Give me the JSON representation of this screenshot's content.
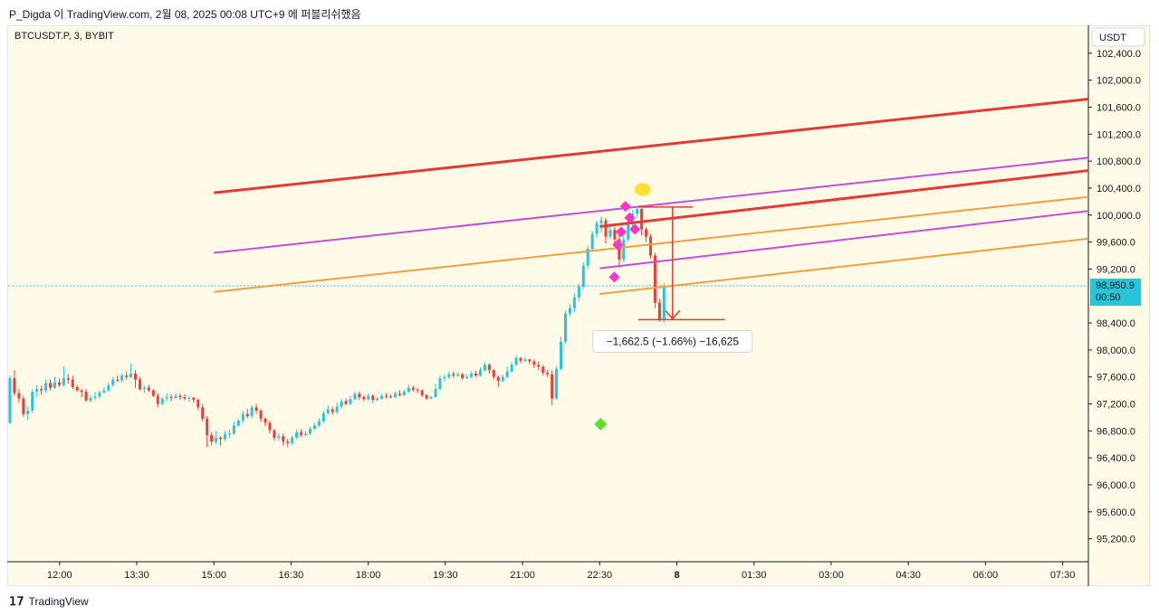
{
  "header": {
    "text": "P_Digda 이 TradingView.com, 2월 08, 2025 00:08 UTC+9 에 퍼블리쉬했음"
  },
  "footer": {
    "brand": "TradingView",
    "logo_icon": "tradingview-logo-icon"
  },
  "chart_data": {
    "type": "candlestick",
    "symbol_label": "BTCUSDT.P, 3, BYBIT",
    "currency_label": "USDT",
    "y_ticks": [
      "102,400.0",
      "102,000.0",
      "101,600.0",
      "101,200.0",
      "100,800.0",
      "100,400.0",
      "100,000.0",
      "99,600.0",
      "99,200.0",
      "98,400.0",
      "98,000.0",
      "97,600.0",
      "97,200.0",
      "96,800.0",
      "96,400.0",
      "96,000.0",
      "95,600.0",
      "95,200.0"
    ],
    "x_ticks": [
      "12:00",
      "13:30",
      "15:00",
      "16:30",
      "18:00",
      "19:30",
      "21:00",
      "22:30",
      "8",
      "01:30",
      "03:00",
      "04:30",
      "06:00",
      "07:30"
    ],
    "x_range": [
      "11:00",
      "08:00"
    ],
    "ylim": [
      94860,
      102800
    ],
    "current_price": {
      "value": "98,950.9",
      "countdown": "00:50",
      "color": "#26c6da"
    },
    "colors": {
      "up": "#26c6da",
      "down": "#ef3b3b",
      "background": "#fffbe6"
    },
    "trendlines": [
      {
        "color": "#e53935",
        "start": [
          "15:00",
          100330
        ],
        "end": [
          "08:00",
          101720
        ]
      },
      {
        "color": "#e53935",
        "start": [
          "22:30",
          99830
        ],
        "end": [
          "08:00",
          100660
        ]
      },
      {
        "color": "#c04ee0",
        "start": [
          "15:00",
          99440
        ],
        "end": [
          "08:00",
          100850
        ]
      },
      {
        "color": "#c04ee0",
        "start": [
          "22:30",
          99210
        ],
        "end": [
          "08:00",
          100060
        ]
      },
      {
        "color": "#f0a040",
        "start": [
          "15:00",
          98860
        ],
        "end": [
          "08:00",
          100270
        ]
      },
      {
        "color": "#f0a040",
        "start": [
          "22:30",
          98830
        ],
        "end": [
          "08:00",
          99650
        ]
      }
    ],
    "markers": [
      {
        "shape": "diamond",
        "color": "#5ae02a",
        "time": "22:31",
        "price": 96900
      },
      {
        "shape": "diamond",
        "color": "#ff33cc",
        "time": "23:00",
        "price": 100130
      },
      {
        "shape": "diamond",
        "color": "#ff33cc",
        "time": "23:05",
        "price": 99960
      },
      {
        "shape": "diamond",
        "color": "#ff33cc",
        "time": "22:55",
        "price": 99750
      },
      {
        "shape": "diamond",
        "color": "#ff33cc",
        "time": "22:51",
        "price": 99560
      },
      {
        "shape": "diamond",
        "color": "#ff33cc",
        "time": "22:47",
        "price": 99080
      },
      {
        "shape": "diamond",
        "color": "#ff33cc",
        "time": "23:11",
        "price": 99790
      },
      {
        "shape": "ellipse",
        "color": "#ffe033",
        "time": "23:20",
        "price": 100380
      }
    ],
    "measurement": {
      "label": "−1,662.5 (−1.66%) −16,625",
      "from_price": 100120,
      "to_price": 98450,
      "time_start": "23:15",
      "time_end": "00:35",
      "color": "#e53935"
    },
    "candles": [
      [
        96920,
        97580,
        96900,
        97620
      ],
      [
        97580,
        97360,
        97320,
        97700
      ],
      [
        97360,
        97280,
        97220,
        97420
      ],
      [
        97280,
        97050,
        97010,
        97320
      ],
      [
        97050,
        97100,
        96960,
        97160
      ],
      [
        97100,
        97380,
        97060,
        97420
      ],
      [
        97380,
        97420,
        97300,
        97480
      ],
      [
        97420,
        97400,
        97340,
        97470
      ],
      [
        97400,
        97510,
        97360,
        97560
      ],
      [
        97510,
        97440,
        97400,
        97560
      ],
      [
        97440,
        97520,
        97420,
        97600
      ],
      [
        97520,
        97480,
        97450,
        97580
      ],
      [
        97480,
        97580,
        97460,
        97760
      ],
      [
        97580,
        97560,
        97500,
        97640
      ],
      [
        97560,
        97450,
        97420,
        97620
      ],
      [
        97450,
        97400,
        97380,
        97480
      ],
      [
        97400,
        97380,
        97300,
        97420
      ],
      [
        97380,
        97250,
        97230,
        97420
      ],
      [
        97250,
        97290,
        97220,
        97330
      ],
      [
        97290,
        97310,
        97260,
        97380
      ],
      [
        97310,
        97370,
        97280,
        97400
      ],
      [
        97370,
        97400,
        97350,
        97450
      ],
      [
        97400,
        97480,
        97380,
        97520
      ],
      [
        97480,
        97560,
        97450,
        97600
      ],
      [
        97560,
        97550,
        97520,
        97620
      ],
      [
        97550,
        97620,
        97520,
        97650
      ],
      [
        97620,
        97600,
        97560,
        97680
      ],
      [
        97600,
        97650,
        97580,
        97800
      ],
      [
        97650,
        97560,
        97440,
        97700
      ],
      [
        97560,
        97420,
        97400,
        97600
      ],
      [
        97420,
        97440,
        97360,
        97470
      ],
      [
        97440,
        97400,
        97380,
        97480
      ],
      [
        97400,
        97320,
        97300,
        97420
      ],
      [
        97320,
        97200,
        97150,
        97360
      ],
      [
        97200,
        97280,
        97180,
        97300
      ],
      [
        97280,
        97300,
        97240,
        97360
      ],
      [
        97300,
        97290,
        97240,
        97340
      ],
      [
        97290,
        97320,
        97280,
        97360
      ],
      [
        97320,
        97300,
        97260,
        97350
      ],
      [
        97300,
        97280,
        97250,
        97340
      ],
      [
        97280,
        97290,
        97230,
        97320
      ],
      [
        97290,
        97260,
        97220,
        97310
      ],
      [
        97260,
        97150,
        97110,
        97280
      ],
      [
        97150,
        96980,
        96940,
        97200
      ],
      [
        96980,
        96740,
        96560,
        97020
      ],
      [
        96740,
        96640,
        96590,
        96780
      ],
      [
        96640,
        96700,
        96600,
        96800
      ],
      [
        96700,
        96680,
        96580,
        96720
      ],
      [
        96680,
        96750,
        96650,
        96800
      ],
      [
        96750,
        96760,
        96700,
        96820
      ],
      [
        96760,
        96880,
        96740,
        96940
      ],
      [
        96880,
        96950,
        96860,
        96980
      ],
      [
        96950,
        97050,
        96920,
        97100
      ],
      [
        97050,
        97020,
        96990,
        97130
      ],
      [
        97020,
        97150,
        96990,
        97180
      ],
      [
        97150,
        97100,
        97050,
        97200
      ],
      [
        97100,
        96980,
        96930,
        97120
      ],
      [
        96980,
        96920,
        96870,
        97000
      ],
      [
        96920,
        96810,
        96760,
        96950
      ],
      [
        96810,
        96700,
        96660,
        96830
      ],
      [
        96700,
        96720,
        96650,
        96760
      ],
      [
        96720,
        96640,
        96580,
        96760
      ],
      [
        96640,
        96620,
        96560,
        96680
      ],
      [
        96620,
        96700,
        96590,
        96730
      ],
      [
        96700,
        96780,
        96680,
        96820
      ],
      [
        96780,
        96740,
        96710,
        96820
      ],
      [
        96740,
        96760,
        96720,
        96800
      ],
      [
        96760,
        96830,
        96740,
        96860
      ],
      [
        96830,
        96880,
        96810,
        96920
      ],
      [
        96880,
        96940,
        96860,
        96990
      ],
      [
        96940,
        97060,
        96920,
        97100
      ],
      [
        97060,
        97120,
        97040,
        97180
      ],
      [
        97120,
        97080,
        97040,
        97160
      ],
      [
        97080,
        97160,
        97050,
        97220
      ],
      [
        97160,
        97240,
        97130,
        97270
      ],
      [
        97240,
        97200,
        97180,
        97280
      ],
      [
        97200,
        97270,
        97180,
        97320
      ],
      [
        97270,
        97350,
        97250,
        97380
      ],
      [
        97350,
        97300,
        97260,
        97380
      ],
      [
        97300,
        97270,
        97240,
        97330
      ],
      [
        97270,
        97320,
        97250,
        97360
      ],
      [
        97320,
        97260,
        97220,
        97340
      ],
      [
        97260,
        97280,
        97240,
        97300
      ],
      [
        97280,
        97320,
        97260,
        97350
      ],
      [
        97320,
        97310,
        97280,
        97360
      ],
      [
        97310,
        97300,
        97280,
        97340
      ],
      [
        97300,
        97350,
        97290,
        97380
      ],
      [
        97350,
        97330,
        97310,
        97400
      ],
      [
        97330,
        97380,
        97320,
        97410
      ],
      [
        97380,
        97440,
        97360,
        97480
      ],
      [
        97440,
        97410,
        97380,
        97470
      ],
      [
        97410,
        97400,
        97360,
        97440
      ],
      [
        97400,
        97330,
        97300,
        97420
      ],
      [
        97330,
        97280,
        97260,
        97350
      ],
      [
        97280,
        97300,
        97270,
        97320
      ],
      [
        97300,
        97420,
        97290,
        97500
      ],
      [
        97420,
        97580,
        97400,
        97620
      ],
      [
        97580,
        97600,
        97540,
        97640
      ],
      [
        97600,
        97640,
        97570,
        97680
      ],
      [
        97640,
        97620,
        97590,
        97680
      ],
      [
        97620,
        97640,
        97600,
        97670
      ],
      [
        97640,
        97580,
        97560,
        97660
      ],
      [
        97580,
        97600,
        97570,
        97640
      ],
      [
        97600,
        97650,
        97580,
        97680
      ],
      [
        97650,
        97620,
        97600,
        97690
      ],
      [
        97620,
        97700,
        97600,
        97740
      ],
      [
        97700,
        97780,
        97680,
        97820
      ],
      [
        97780,
        97700,
        97650,
        97800
      ],
      [
        97700,
        97600,
        97560,
        97720
      ],
      [
        97600,
        97540,
        97450,
        97620
      ],
      [
        97540,
        97600,
        97520,
        97640
      ],
      [
        97600,
        97680,
        97580,
        97760
      ],
      [
        97680,
        97780,
        97660,
        97820
      ],
      [
        97780,
        97880,
        97760,
        97920
      ],
      [
        97880,
        97840,
        97800,
        97900
      ],
      [
        97840,
        97860,
        97820,
        97890
      ],
      [
        97860,
        97830,
        97790,
        97870
      ],
      [
        97830,
        97780,
        97730,
        97860
      ],
      [
        97780,
        97750,
        97700,
        97830
      ],
      [
        97750,
        97660,
        97620,
        97780
      ],
      [
        97660,
        97640,
        97600,
        97700
      ],
      [
        97640,
        97280,
        97180,
        97700
      ],
      [
        97280,
        97720,
        97260,
        97760
      ],
      [
        97720,
        98120,
        97700,
        98200
      ],
      [
        98120,
        98540,
        98100,
        98580
      ],
      [
        98540,
        98620,
        98500,
        98680
      ],
      [
        98620,
        98780,
        98560,
        98840
      ],
      [
        98780,
        98940,
        98720,
        98980
      ],
      [
        98940,
        99250,
        98900,
        99300
      ],
      [
        99250,
        99500,
        99200,
        99550
      ],
      [
        99500,
        99720,
        99460,
        99760
      ],
      [
        99720,
        99880,
        99660,
        99920
      ],
      [
        99880,
        99920,
        99740,
        99980
      ],
      [
        99920,
        99680,
        99580,
        99960
      ],
      [
        99680,
        99780,
        99640,
        99880
      ],
      [
        99780,
        99640,
        99580,
        99820
      ],
      [
        99640,
        99340,
        99220,
        99720
      ],
      [
        99340,
        99640,
        99300,
        99700
      ],
      [
        99640,
        99880,
        99600,
        99920
      ],
      [
        99880,
        100020,
        99820,
        100080
      ],
      [
        100020,
        100090,
        99960,
        100130
      ],
      [
        100090,
        99790,
        99700,
        100100
      ],
      [
        99790,
        99680,
        99600,
        99820
      ],
      [
        99680,
        99400,
        99350,
        99720
      ],
      [
        99400,
        98700,
        98620,
        99440
      ],
      [
        98700,
        98450,
        98420,
        98760
      ],
      [
        98450,
        98950,
        98400,
        98990
      ]
    ]
  }
}
